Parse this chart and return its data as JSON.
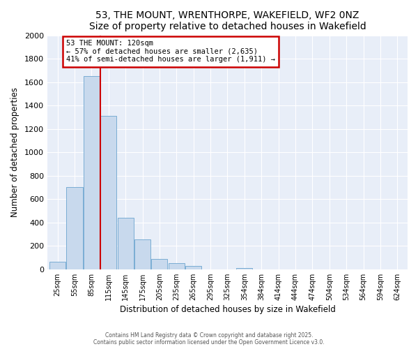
{
  "title": "53, THE MOUNT, WRENTHORPE, WAKEFIELD, WF2 0NZ",
  "subtitle": "Size of property relative to detached houses in Wakefield",
  "xlabel": "Distribution of detached houses by size in Wakefield",
  "ylabel": "Number of detached properties",
  "bar_labels": [
    "25sqm",
    "55sqm",
    "85sqm",
    "115sqm",
    "145sqm",
    "175sqm",
    "205sqm",
    "235sqm",
    "265sqm",
    "295sqm",
    "325sqm",
    "354sqm",
    "384sqm",
    "414sqm",
    "444sqm",
    "474sqm",
    "504sqm",
    "534sqm",
    "564sqm",
    "594sqm",
    "624sqm"
  ],
  "bar_values": [
    65,
    700,
    1650,
    1310,
    440,
    255,
    90,
    52,
    30,
    0,
    0,
    10,
    0,
    0,
    0,
    0,
    0,
    0,
    0,
    0,
    0
  ],
  "bar_color": "#c8d9ed",
  "bar_edge_color": "#7aadd4",
  "vline_label": "53 THE MOUNT: 120sqm",
  "annotation_line1": "← 57% of detached houses are smaller (2,635)",
  "annotation_line2": "41% of semi-detached houses are larger (1,911) →",
  "annotation_box_color": "#ffffff",
  "annotation_box_edge": "#cc0000",
  "vline_color": "#cc0000",
  "ylim": [
    0,
    2000
  ],
  "yticks": [
    0,
    200,
    400,
    600,
    800,
    1000,
    1200,
    1400,
    1600,
    1800,
    2000
  ],
  "footer1": "Contains HM Land Registry data © Crown copyright and database right 2025.",
  "footer2": "Contains public sector information licensed under the Open Government Licence v3.0.",
  "bg_color": "#ffffff",
  "plot_bg_color": "#e8eef8",
  "grid_color": "#ffffff",
  "title_fontsize": 10,
  "subtitle_fontsize": 9
}
